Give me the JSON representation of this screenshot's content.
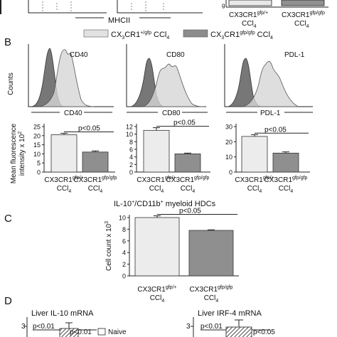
{
  "panel_top": {
    "xlabel": "MHCII",
    "group1": "CX3CR1",
    "group1_sup": "gfp/+",
    "group2": "CX3CR1",
    "group2_sup": "gfp/gfp",
    "ccl4": "CCl",
    "ccl4_sub": "4"
  },
  "panel_b": {
    "letter": "B",
    "legend": [
      {
        "base": "CX",
        "sub": "3",
        "mid": "CR1",
        "sup": "+/gfp",
        "tail": " CCl",
        "tail_sub": "4",
        "color": "#e2e2e2"
      },
      {
        "base": "CX",
        "sub": "3",
        "mid": "CR1",
        "sup": "gfp/gfp",
        "tail": " CCl",
        "tail_sub": "4",
        "color": "#8c8c8c"
      }
    ],
    "counts_label": "Counts",
    "histograms": [
      {
        "title": "CD40",
        "xlabel": "CD40"
      },
      {
        "title": "CD80",
        "xlabel": "CD80"
      },
      {
        "title": "PDL-1",
        "xlabel": "PDL-1"
      }
    ],
    "ylabel_line1": "Mean fluorescence",
    "ylabel_line2": "intensity x 10",
    "ylabel_sup": "2"
  },
  "chart_data": [
    {
      "type": "bar",
      "panel": "B-CD40",
      "categories": [
        "CX3CR1 gfp/+ CCl4",
        "CX3CR1 gfp/gfp CCl4"
      ],
      "values": [
        20.5,
        11
      ],
      "errors": [
        0.8,
        0.6
      ],
      "ylim": [
        0,
        25
      ],
      "yticks": [
        "0",
        "5",
        "10",
        "15",
        "20",
        "25"
      ],
      "annotation": "p<0.05",
      "colors": [
        "#ececec",
        "#8f8f8f"
      ]
    },
    {
      "type": "bar",
      "panel": "B-CD80",
      "categories": [
        "CX3CR1 gfp/+ CCl4",
        "CX3CR1 gfp/gfp CCl4"
      ],
      "values": [
        11,
        4.8
      ],
      "errors": [
        0.7,
        0.2
      ],
      "ylim": [
        0,
        12
      ],
      "yticks": [
        "0",
        "2",
        "4",
        "6",
        "8",
        "10",
        "12"
      ],
      "annotation": "p<0.05",
      "colors": [
        "#ececec",
        "#8f8f8f"
      ]
    },
    {
      "type": "bar",
      "panel": "B-PDL-1",
      "categories": [
        "CX3CR1 gfp/+ CCl4",
        "CX3CR1 gfp/gfp CCl4"
      ],
      "values": [
        23.5,
        12.5
      ],
      "errors": [
        1.2,
        0.8
      ],
      "ylim": [
        0,
        30
      ],
      "yticks": [
        "0",
        "10",
        "20",
        "30"
      ],
      "annotation": "p<0.05",
      "colors": [
        "#ececec",
        "#8f8f8f"
      ]
    },
    {
      "type": "bar",
      "panel": "C",
      "title": "IL-10+/CD11b+ myeloid HDCs",
      "ylabel": "Cell count x 10",
      "ylabel_sup": "3",
      "categories": [
        "CX3CR1 gfp/+ CCl4",
        "CX3CR1 gfp/gfp CCl4"
      ],
      "values": [
        10,
        7.8
      ],
      "errors": [
        0.3,
        0.1
      ],
      "ylim": [
        0,
        10
      ],
      "yticks": [
        "0",
        "2",
        "4",
        "6",
        "8",
        "10"
      ],
      "annotation": "p<0.05",
      "colors": [
        "#ececec",
        "#8f8f8f"
      ]
    }
  ],
  "panel_c": {
    "letter": "C",
    "title_pre": "IL-10",
    "title_sup1": "+",
    "title_mid": "/CD11b",
    "title_sup2": "+",
    "title_post": " myeloid HDCs"
  },
  "panel_d": {
    "letter": "D",
    "left_title": "Liver IL-10 mRNA",
    "right_title": "Liver IRF-4 mRNA",
    "left_p1": "p<0.01",
    "left_p2": "p<0.01",
    "right_p1": "p<0.01",
    "right_p2": "p<0.05",
    "legend_naive": "Naive",
    "tick_3": "3"
  }
}
